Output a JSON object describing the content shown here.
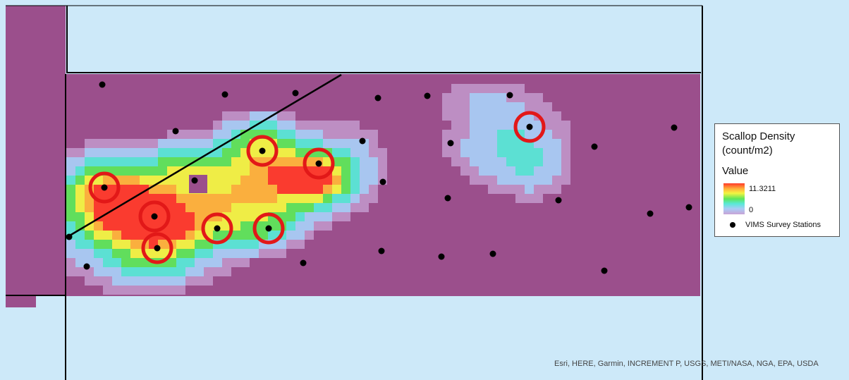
{
  "map": {
    "colors": {
      "water": "#cde9f9",
      "land": "#9b4f8c",
      "boundary": "#000000",
      "station": "#000000",
      "highlight": "#e21818"
    },
    "density_palette": {
      "low": "#c8a3d6",
      "mid_low": "#a9ccf6",
      "mid": "#59e8d7",
      "mid_high": "#5ee65a",
      "high": "#f3f542",
      "very_high": "#ffb43a",
      "max": "#ff3a2a"
    }
  },
  "legend": {
    "title": "Scallop Density (count/m2)",
    "value_heading": "Value",
    "max_value": "11.3211",
    "min_value": "0",
    "station_label": "VIMS Survey Stations"
  },
  "attribution": "Esri, HERE, Garmin, INCREMENT P, USGS, METI/NASA, NGA, EPA, USDA"
}
